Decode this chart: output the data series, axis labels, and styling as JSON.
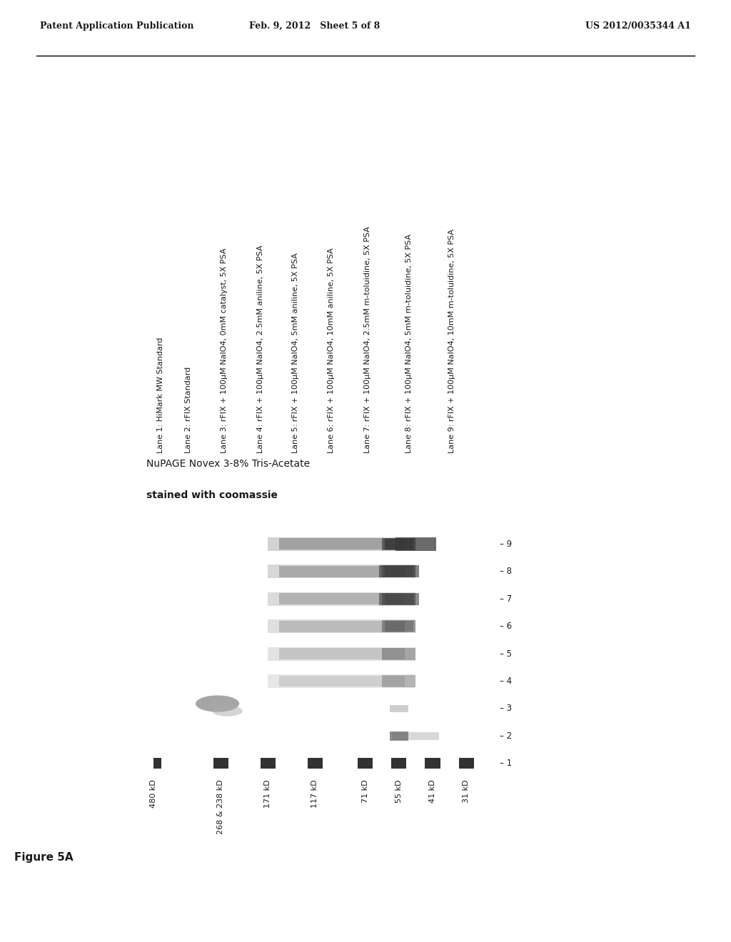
{
  "header_left": "Patent Application Publication",
  "header_mid": "Feb. 9, 2012   Sheet 5 of 8",
  "header_right": "US 2012/0035344 A1",
  "legend_lines": [
    "Lane 1: HiMark MW Standard",
    "Lane 2: rFIX Standard",
    "Lane 3: rFIX + 100μM NaIO4, 0mM catalyst, 5X PSA",
    "Lane 4: rFIX + 100μM NaIO4, 2.5mM aniline, 5X PSA",
    "Lane 5: rFIX + 100μM NaIO4, 5mM aniline, 5X PSA",
    "Lane 6: rFIX + 100μM NaIO4, 10mM aniline, 5X PSA",
    "Lane 7: rFIX + 100μM NaIO4, 2.5mM m-toluidine, 5X PSA",
    "Lane 8: rFIX + 100μM NaIO4, 5mM m-toluidine, 5X PSA",
    "Lane 9: rFIX + 100μM NaIO4, 10mM m-toluidine, 5X PSA"
  ],
  "gel_title_line1": "NuPAGE Novex 3-8% Tris-Acetate",
  "gel_title_line2": "stained with coomassie",
  "mw_markers": [
    "480 kD",
    "268 & 238 kD",
    "171 kD",
    "117 kD",
    "71 kD",
    "55 kD",
    "41 kD",
    "31 kD"
  ],
  "figure_label": "Figure 5A",
  "bg_color": "#ffffff",
  "text_color": "#1a1a1a",
  "gel_bg": "#f0f0f0",
  "lane_prefix": "Lane"
}
